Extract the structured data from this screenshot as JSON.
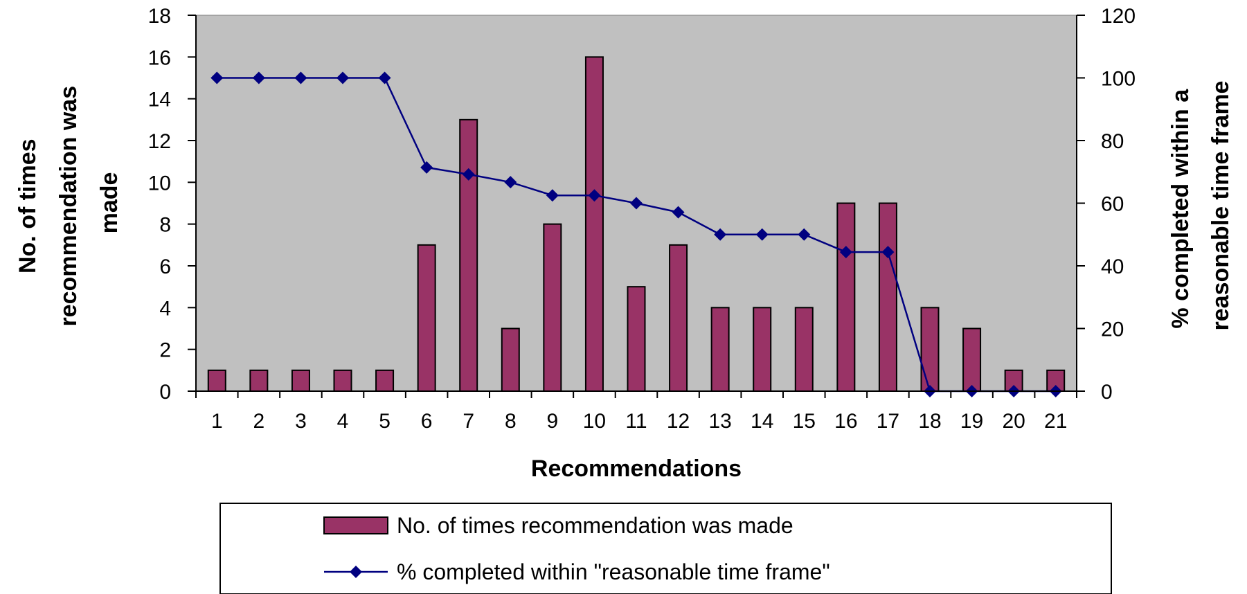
{
  "chart_data": {
    "type": "bar",
    "categories": [
      "1",
      "2",
      "3",
      "4",
      "5",
      "6",
      "7",
      "8",
      "9",
      "10",
      "11",
      "12",
      "13",
      "14",
      "15",
      "16",
      "17",
      "18",
      "19",
      "20",
      "21"
    ],
    "series": [
      {
        "name": "No. of times recommendation was made",
        "type": "bar",
        "axis": "left",
        "color": "#993366",
        "values": [
          1,
          1,
          1,
          1,
          1,
          7,
          13,
          3,
          8,
          16,
          5,
          7,
          4,
          4,
          4,
          9,
          9,
          4,
          3,
          1,
          1
        ]
      },
      {
        "name": "% completed within \"reasonable time frame\"",
        "type": "line",
        "axis": "right",
        "color": "#000080",
        "values": [
          100,
          100,
          100,
          100,
          100,
          71.4,
          69.2,
          66.7,
          62.5,
          62.5,
          60,
          57.1,
          50,
          50,
          50,
          44.4,
          44.4,
          0,
          0,
          0,
          0
        ]
      }
    ],
    "xlabel": "Recommendations",
    "ylabel_left": [
      "No. of times",
      "recommendation was",
      "made"
    ],
    "ylabel_right": [
      "% completed within a",
      "reasonable time frame"
    ],
    "ylim_left": [
      0,
      18
    ],
    "ylim_right": [
      0,
      120
    ],
    "yticks_left": [
      0,
      2,
      4,
      6,
      8,
      10,
      12,
      14,
      16,
      18
    ],
    "yticks_right": [
      0,
      20,
      40,
      60,
      80,
      100,
      120
    ],
    "plot_background": "#c0c0c0",
    "grid": false,
    "legend_position": "bottom"
  }
}
